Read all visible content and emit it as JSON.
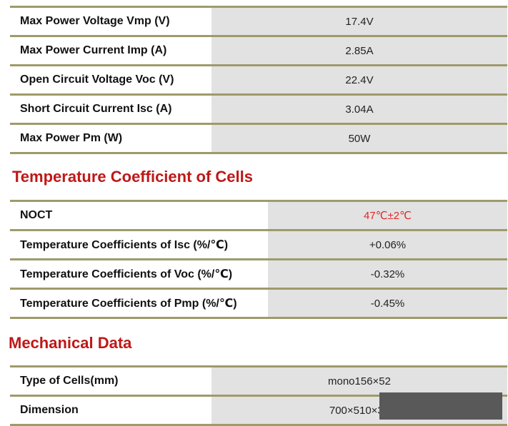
{
  "electrical_rows": [
    {
      "label": "Max Power Voltage Vmp (V)",
      "value": "17.4V"
    },
    {
      "label": "Max Power Current Imp (A)",
      "value": "2.85A"
    },
    {
      "label": "Open Circuit Voltage Voc (V)",
      "value": "22.4V"
    },
    {
      "label": "Short Circuit Current Isc (A)",
      "value": "3.04A"
    },
    {
      "label": "Max Power Pm (W)",
      "value": "50W"
    }
  ],
  "temperature": {
    "title": "Temperature Coefficient of Cells",
    "rows": [
      {
        "label": "NOCT",
        "value": "47℃±2℃"
      },
      {
        "label": "Temperature Coefficients of Isc (%/℃)",
        "value": "+0.06%"
      },
      {
        "label": "Temperature Coefficients of Voc (%/℃)",
        "value": "-0.32%"
      },
      {
        "label": "Temperature Coefficients of Pmp (%/℃)",
        "value": "-0.45%"
      }
    ],
    "highlight_color": "#e0282a"
  },
  "mechanical": {
    "title": "Mechanical Data",
    "rows": [
      {
        "label": "Type of Cells(mm)",
        "value": "mono156×52"
      },
      {
        "label": "Dimension",
        "value": "700×510×30"
      }
    ]
  },
  "colors": {
    "section_title": "#bf1818",
    "row_border": "#9f9a6a",
    "overlay": "#595959"
  }
}
